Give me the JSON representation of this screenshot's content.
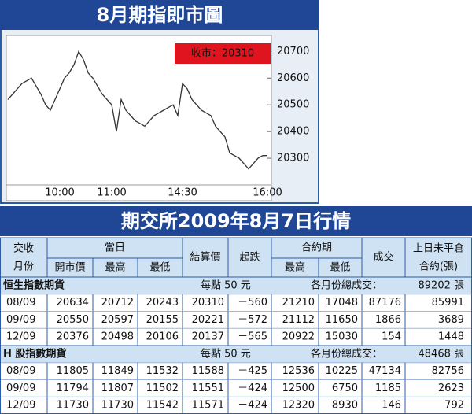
{
  "chart_data": {
    "type": "line",
    "title": "8月期指即市圖",
    "annotation": "收市：20310",
    "categories": [
      null,
      null,
      null,
      null,
      null,
      null,
      null,
      null,
      null,
      null,
      null,
      "10:00",
      null,
      null,
      null,
      null,
      null,
      null,
      null,
      null,
      null,
      null,
      "11:00",
      null,
      null,
      null,
      null,
      null,
      null,
      null,
      null,
      null,
      null,
      null,
      null,
      null,
      null,
      "14:30",
      null,
      null,
      null,
      null,
      null,
      null,
      null,
      null,
      null,
      null,
      null,
      null,
      null,
      null,
      null,
      null,
      null,
      "16:00"
    ],
    "values": [
      20520,
      20540,
      20560,
      20580,
      20590,
      20600,
      20570,
      20540,
      20500,
      20480,
      20520,
      20560,
      20600,
      20620,
      20650,
      20700,
      20670,
      20620,
      20600,
      20570,
      20540,
      20520,
      20500,
      20400,
      20520,
      20480,
      20460,
      20440,
      20430,
      20420,
      20440,
      20460,
      20470,
      20480,
      20490,
      20500,
      20460,
      20580,
      20560,
      20520,
      20500,
      20480,
      20470,
      20460,
      20420,
      20400,
      20380,
      20320,
      20310,
      20300,
      20280,
      20260,
      20280,
      20300,
      20310,
      20310
    ],
    "color": "#333333",
    "annotation_color": "#e0141e",
    "ylim": [
      20200,
      20760
    ],
    "yticks": [
      20300,
      20400,
      20500,
      20600,
      20700
    ]
  },
  "table": {
    "title": "期交所2009年8月7日行情",
    "header": {
      "month": [
        "交收",
        "月份"
      ],
      "day": "當日",
      "open": "開市價",
      "high": "最高",
      "low": "最低",
      "settle": "結算價",
      "change": "起跌",
      "contract": "合約期",
      "c_high": "最高",
      "c_low": "最低",
      "volume": "成交",
      "oi": [
        "上日未平倉",
        "合約(張)"
      ]
    },
    "sections": [
      {
        "name": "恒生指數期貨",
        "unit": "每點 50 元",
        "total_label": "各月份總成交：",
        "total": "89202 張",
        "rows": [
          [
            "08/09",
            "20634",
            "20712",
            "20243",
            "20310",
            "－560",
            "21210",
            "17048",
            "87176",
            "85991"
          ],
          [
            "09/09",
            "20550",
            "20597",
            "20155",
            "20221",
            "－572",
            "21112",
            "11650",
            "1866",
            "3689"
          ],
          [
            "12/09",
            "20376",
            "20498",
            "20106",
            "20137",
            "－565",
            "20922",
            "15030",
            "154",
            "1448"
          ]
        ]
      },
      {
        "name": "H 股指數期貨",
        "unit": "每點 50 元",
        "total_label": "各月份總成交：",
        "total": "48468 張",
        "rows": [
          [
            "08/09",
            "11805",
            "11849",
            "11532",
            "11588",
            "－425",
            "12536",
            "10225",
            "47134",
            "82756"
          ],
          [
            "09/09",
            "11794",
            "11807",
            "11502",
            "11551",
            "－424",
            "12500",
            "6750",
            "1185",
            "2623"
          ],
          [
            "12/09",
            "11730",
            "11730",
            "11542",
            "11571",
            "－424",
            "12320",
            "8930",
            "146",
            "792"
          ]
        ]
      }
    ]
  }
}
